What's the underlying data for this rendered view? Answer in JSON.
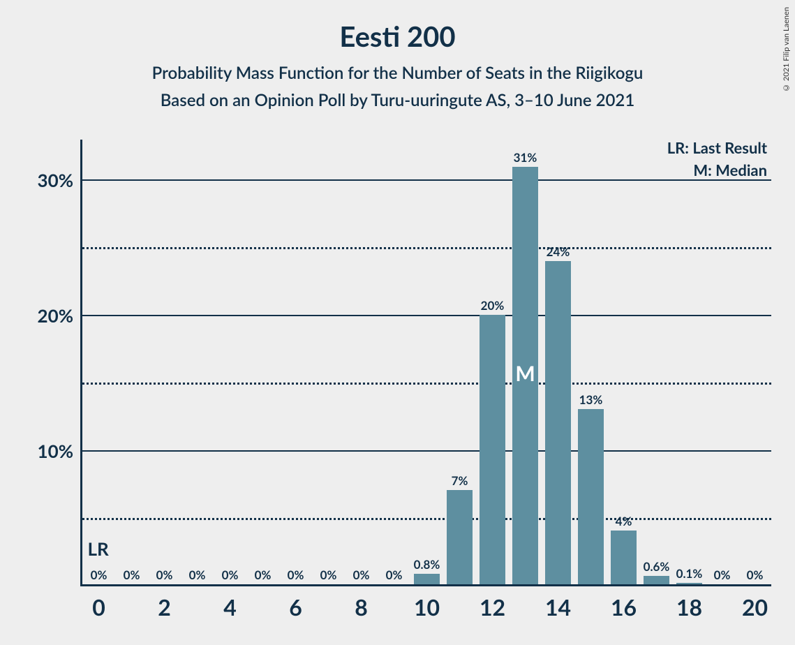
{
  "title": "Eesti 200",
  "subtitle1": "Probability Mass Function for the Number of Seats in the Riigikogu",
  "subtitle2": "Based on an Opinion Poll by Turu-uuringute AS, 3–10 June 2021",
  "copyright": "© 2021 Filip van Laenen",
  "legend": {
    "lr": "LR: Last Result",
    "m": "M: Median"
  },
  "annotations": {
    "lr_text": "LR",
    "lr_x": 0,
    "m_text": "M",
    "m_x": 13
  },
  "chart": {
    "type": "bar",
    "bar_color": "#5e8fa0",
    "background_color": "#eeeeee",
    "axis_color": "#123048",
    "grid_solid_color": "#123048",
    "grid_dotted_color": "#123048",
    "text_color": "#123048",
    "title_fontsize": 40,
    "subtitle_fontsize": 24,
    "tick_fontsize": 26,
    "bar_label_fontsize": 17,
    "ylim": [
      0,
      33
    ],
    "y_ticks": [
      {
        "value": 5,
        "label": "",
        "style": "dotted"
      },
      {
        "value": 10,
        "label": "10%",
        "style": "solid"
      },
      {
        "value": 15,
        "label": "",
        "style": "dotted"
      },
      {
        "value": 20,
        "label": "20%",
        "style": "solid"
      },
      {
        "value": 25,
        "label": "",
        "style": "dotted"
      },
      {
        "value": 30,
        "label": "30%",
        "style": "solid"
      }
    ],
    "x_ticks": [
      0,
      2,
      4,
      6,
      8,
      10,
      12,
      14,
      16,
      18,
      20
    ],
    "bars": [
      {
        "x": 0,
        "value": 0,
        "label": "0%"
      },
      {
        "x": 1,
        "value": 0,
        "label": "0%"
      },
      {
        "x": 2,
        "value": 0,
        "label": "0%"
      },
      {
        "x": 3,
        "value": 0,
        "label": "0%"
      },
      {
        "x": 4,
        "value": 0,
        "label": "0%"
      },
      {
        "x": 5,
        "value": 0,
        "label": "0%"
      },
      {
        "x": 6,
        "value": 0,
        "label": "0%"
      },
      {
        "x": 7,
        "value": 0,
        "label": "0%"
      },
      {
        "x": 8,
        "value": 0,
        "label": "0%"
      },
      {
        "x": 9,
        "value": 0,
        "label": "0%"
      },
      {
        "x": 10,
        "value": 0.8,
        "label": "0.8%"
      },
      {
        "x": 11,
        "value": 7,
        "label": "7%"
      },
      {
        "x": 12,
        "value": 20,
        "label": "20%"
      },
      {
        "x": 13,
        "value": 31,
        "label": "31%"
      },
      {
        "x": 14,
        "value": 24,
        "label": "24%"
      },
      {
        "x": 15,
        "value": 13,
        "label": "13%"
      },
      {
        "x": 16,
        "value": 4,
        "label": "4%"
      },
      {
        "x": 17,
        "value": 0.6,
        "label": "0.6%"
      },
      {
        "x": 18,
        "value": 0.1,
        "label": "0.1%"
      },
      {
        "x": 19,
        "value": 0,
        "label": "0%"
      },
      {
        "x": 20,
        "value": 0,
        "label": "0%"
      }
    ],
    "bar_width_ratio": 0.78,
    "x_count": 21
  }
}
